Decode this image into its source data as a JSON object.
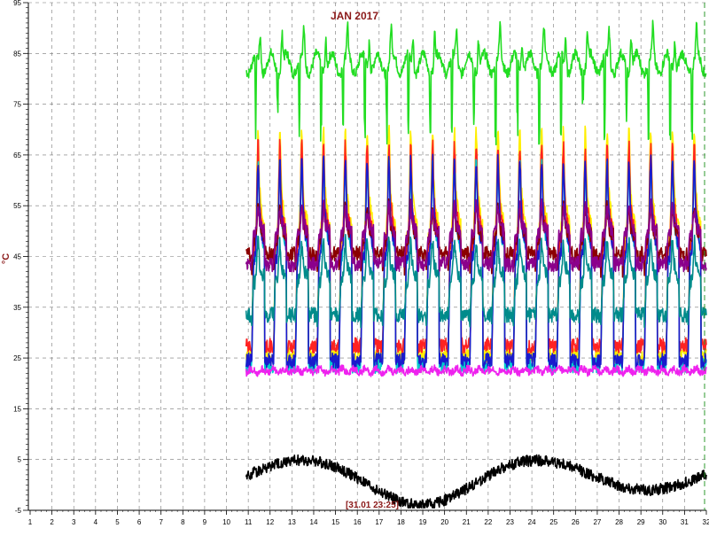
{
  "chart_data": {
    "type": "line",
    "title": "JAN 2017",
    "ylabel": "°C",
    "cursor_label": "[31.01 23:25]",
    "x_ticks": [
      1,
      2,
      3,
      4,
      5,
      6,
      7,
      8,
      9,
      10,
      11,
      12,
      13,
      14,
      15,
      16,
      17,
      18,
      19,
      20,
      21,
      22,
      23,
      24,
      25,
      26,
      27,
      28,
      29,
      30,
      31,
      32
    ],
    "y_ticks": [
      -5,
      5,
      15,
      25,
      35,
      45,
      55,
      65,
      75,
      85,
      95
    ],
    "xlim": [
      1,
      32
    ],
    "ylim": [
      -5,
      95
    ],
    "grid": true,
    "colors": {
      "title": "#8b1a1a",
      "axis": "#000000",
      "grid": "#777777",
      "cursor": "#2e9a2e"
    },
    "series": [
      {
        "color": "#22dd22",
        "base": 85,
        "amp": 5,
        "type": "upper"
      },
      {
        "color": "#ffee00",
        "peak": 70,
        "low": 22,
        "type": "cycle"
      },
      {
        "color": "#ff2222",
        "peak": 67,
        "low": 22,
        "type": "cycle"
      },
      {
        "color": "#00cccc",
        "peak": 63,
        "low": 22,
        "type": "cycle"
      },
      {
        "color": "#1a1acc",
        "peak": 64,
        "low": 21,
        "type": "cycle"
      },
      {
        "color": "#8b0000",
        "peak": 55,
        "low": 40,
        "type": "cycle"
      },
      {
        "color": "#8b008b",
        "peak": 55,
        "low": 42,
        "type": "cycle"
      },
      {
        "color": "#008b8b",
        "peak": 48,
        "low": 30,
        "type": "cycle"
      },
      {
        "color": "#ee22ee",
        "base": 22.5,
        "amp": 1,
        "type": "flat"
      },
      {
        "color": "#000000",
        "base": 2,
        "amp": 3,
        "type": "outdoor"
      }
    ],
    "data_start_day": 10.9
  }
}
